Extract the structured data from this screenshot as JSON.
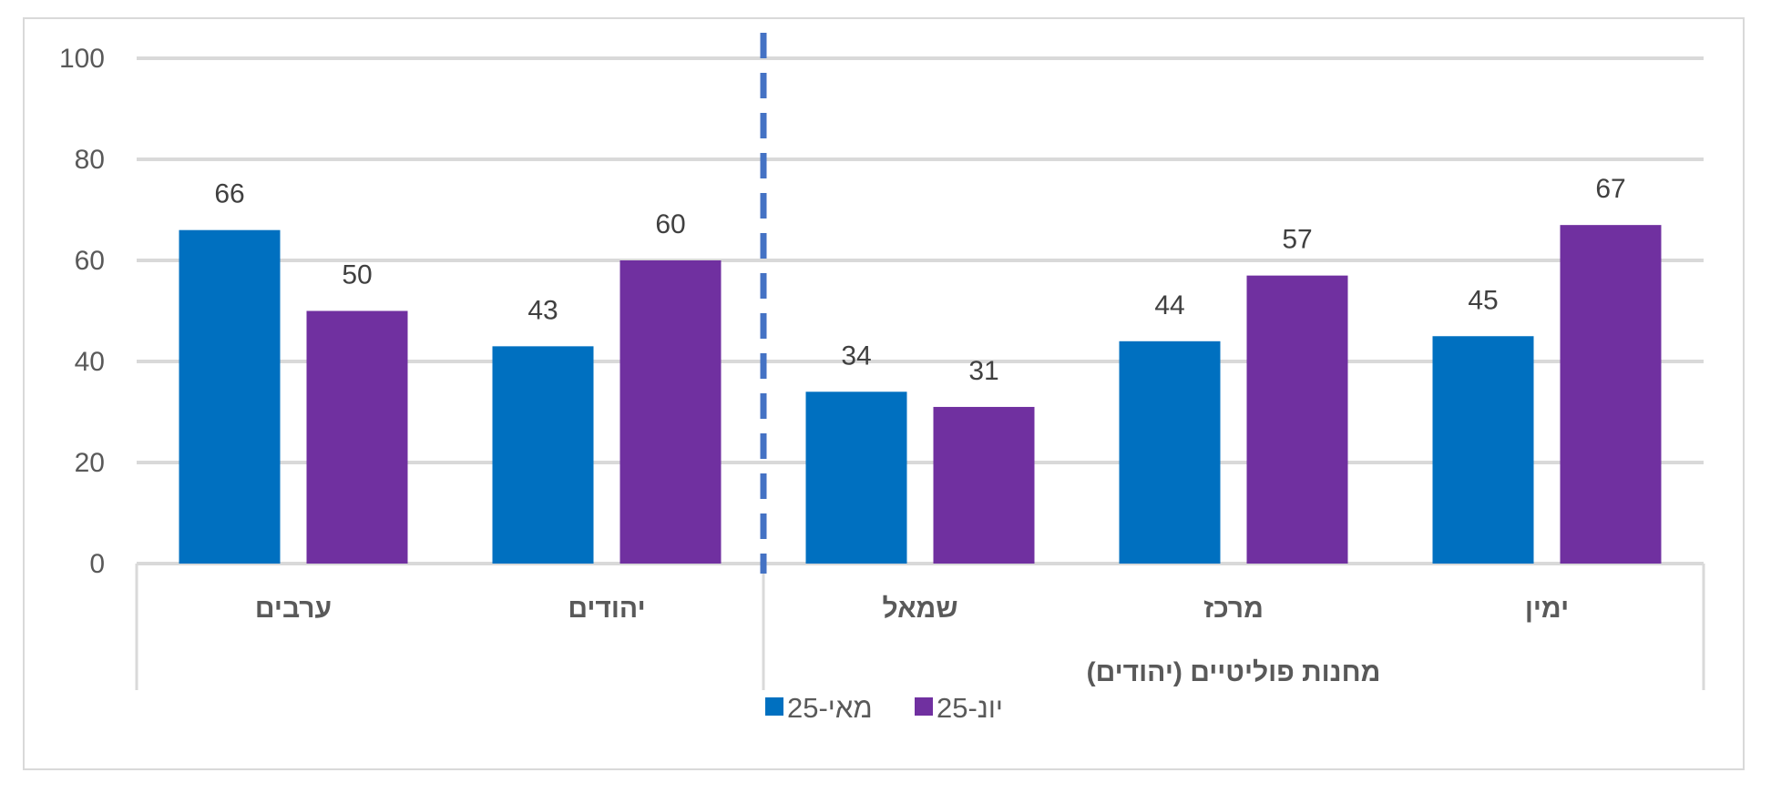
{
  "chart_data": {
    "type": "bar",
    "ylim": [
      0,
      100
    ],
    "yticks": [
      0,
      20,
      40,
      60,
      80,
      100
    ],
    "grid": true,
    "legend_position": "bottom",
    "categories": [
      "ערבים",
      "יהודים",
      "שמאל",
      "מרכז",
      "ימין"
    ],
    "group_label": "מחנות פוליטיים (יהודים)",
    "series": [
      {
        "name": "מאי-25",
        "color": "#0070C0",
        "values": [
          66,
          43,
          34,
          44,
          45
        ]
      },
      {
        "name": "יונ-25",
        "color": "#7030A0",
        "values": [
          50,
          60,
          31,
          57,
          67
        ]
      }
    ]
  }
}
